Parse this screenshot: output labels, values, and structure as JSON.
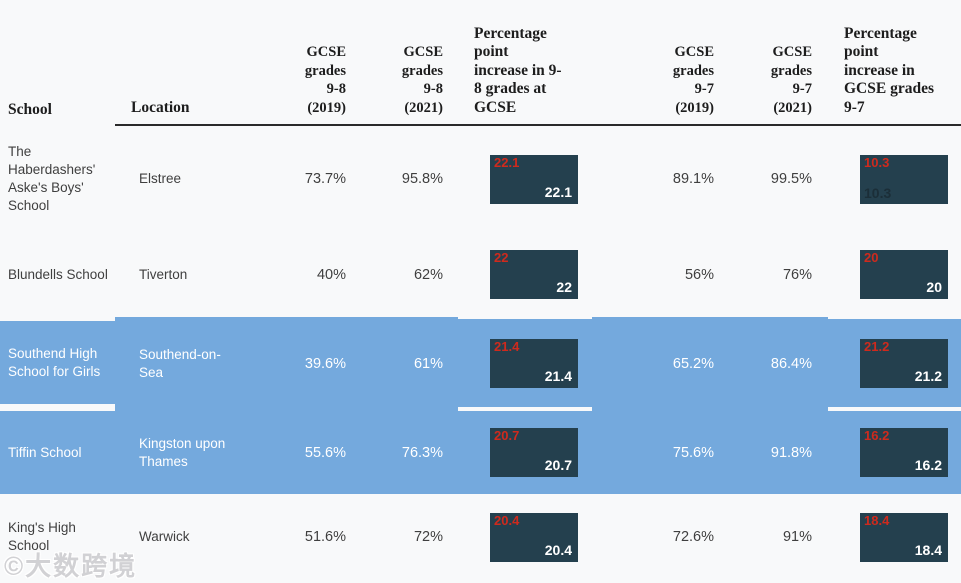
{
  "colors": {
    "page_background": "#f8f9fa",
    "highlight_blue": "#74a9dd",
    "bar_navy": "#24404e",
    "bar_label_red": "#cf2a1d",
    "bar_label_white": "#ffffff",
    "bar_label_dark": "#1b2e38",
    "header_text": "#1d1d1d",
    "body_text": "#3f3f3f",
    "header_rule": "#2a2a2a"
  },
  "watermark": "©大数跨境",
  "table": {
    "columns": [
      {
        "key": "school",
        "label": "School",
        "type": "text"
      },
      {
        "key": "location",
        "label": "Location",
        "type": "text"
      },
      {
        "key": "g8_2019",
        "label": "GCSE\ngrades\n9-8\n(2019)",
        "type": "number"
      },
      {
        "key": "g8_2021",
        "label": "GCSE\ngrades\n9-8\n(2021)",
        "type": "number"
      },
      {
        "key": "inc8",
        "label": "Percentage\npoint\nincrease in 9-\n8 grades at\nGCSE",
        "type": "bar"
      },
      {
        "key": "g7_2019",
        "label": "GCSE\ngrades\n9-7\n(2019)",
        "type": "number"
      },
      {
        "key": "g7_2021",
        "label": "GCSE\ngrades\n9-7\n(2021)",
        "type": "number"
      },
      {
        "key": "inc7",
        "label": "Percentage\npoint\nincrease in\nGCSE grades\n9-7",
        "type": "bar"
      }
    ],
    "rows": [
      {
        "highlight": false,
        "values": {
          "school": "The Haberdashers' Aske's Boys' School",
          "location": "Elstree",
          "g8_2019": "73.7%",
          "g8_2021": "95.8%",
          "inc8": "22.1",
          "g7_2019": "89.1%",
          "g7_2021": "99.5%",
          "inc7": "10.3"
        },
        "bar_styles": {
          "inc7": "dark-left"
        }
      },
      {
        "highlight": false,
        "values": {
          "school": "Blundells School",
          "location": "Tiverton",
          "g8_2019": "40%",
          "g8_2021": "62%",
          "inc8": "22",
          "g7_2019": "56%",
          "g7_2021": "76%",
          "inc7": "20"
        }
      },
      {
        "highlight": true,
        "values": {
          "school": "Southend High School for Girls",
          "location": "Southend-on-Sea",
          "g8_2019": "39.6%",
          "g8_2021": "61%",
          "inc8": "21.4",
          "g7_2019": "65.2%",
          "g7_2021": "86.4%",
          "inc7": "21.2"
        }
      },
      {
        "highlight": true,
        "values": {
          "school": "Tiffin School",
          "location": "Kingston upon Thames",
          "g8_2019": "55.6%",
          "g8_2021": "76.3%",
          "inc8": "20.7",
          "g7_2019": "75.6%",
          "g7_2021": "91.8%",
          "inc7": "16.2"
        }
      },
      {
        "highlight": false,
        "values": {
          "school": "King's High School",
          "location": "Warwick",
          "g8_2019": "51.6%",
          "g8_2021": "72%",
          "inc8": "20.4",
          "g7_2019": "72.6%",
          "g7_2021": "91%",
          "inc7": "18.4"
        }
      }
    ]
  },
  "chart_data": {
    "type": "table",
    "title": "",
    "columns": [
      "School",
      "Location",
      "GCSE grades 9-8 (2019)",
      "GCSE grades 9-8 (2021)",
      "Percentage point increase in 9-8 grades at GCSE",
      "GCSE grades 9-7 (2019)",
      "GCSE grades 9-7 (2021)",
      "Percentage point increase in GCSE grades 9-7"
    ],
    "rows": [
      [
        "The Haberdashers' Aske's Boys' School",
        "Elstree",
        73.7,
        95.8,
        22.1,
        89.1,
        99.5,
        10.3
      ],
      [
        "Blundells School",
        "Tiverton",
        40,
        62,
        22,
        56,
        76,
        20
      ],
      [
        "Southend High School for Girls",
        "Southend-on-Sea",
        39.6,
        61,
        21.4,
        65.2,
        86.4,
        21.2
      ],
      [
        "Tiffin School",
        "Kingston upon Thames",
        55.6,
        76.3,
        20.7,
        75.6,
        91.8,
        16.2
      ],
      [
        "King's High School",
        "Warwick",
        51.6,
        72,
        20.4,
        72.6,
        91,
        18.4
      ]
    ],
    "highlighted_rows": [
      2,
      3
    ],
    "notes": "Increase columns rendered as uniform-width navy bar cells with red value label top-left and value label bottom-right (row 1 GCSE 9-7 increase label dark, bottom-left)."
  }
}
